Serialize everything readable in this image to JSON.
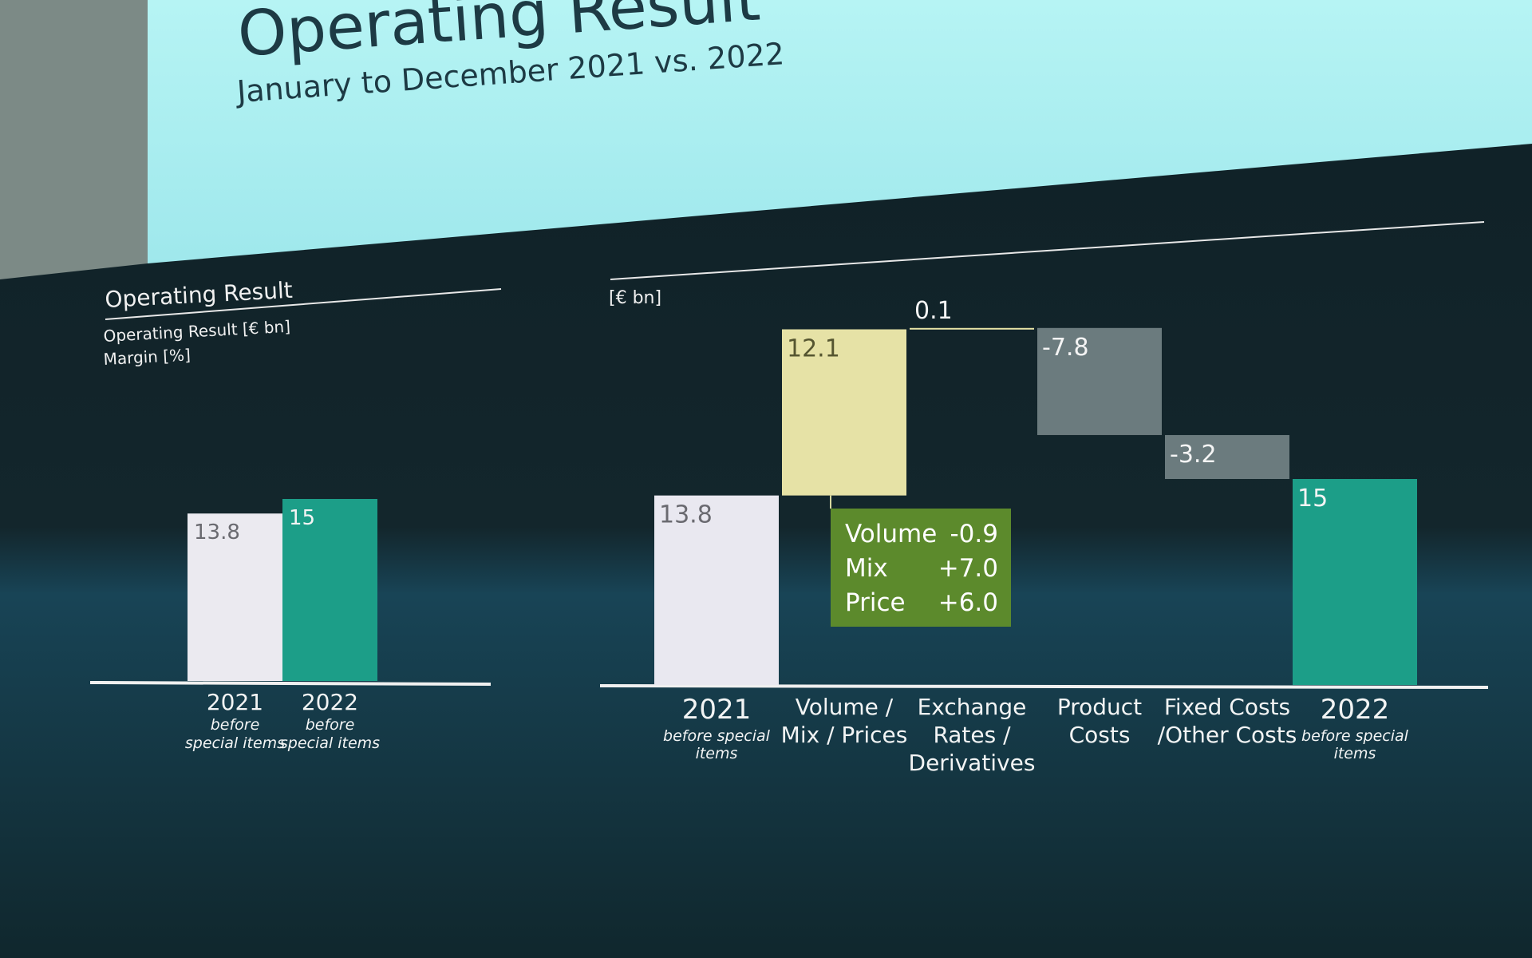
{
  "header": {
    "title": "Operating Result",
    "subtitle": "January to December 2021 vs. 2022"
  },
  "chart_data": [
    {
      "type": "bar",
      "title": "Operating Result",
      "subtitle": "Operating Result [€ bn]",
      "subtitle2": "Margin [%]",
      "categories": [
        "2021",
        "2022"
      ],
      "category_notes": [
        "before special items",
        "before special items"
      ],
      "values": [
        13.8,
        15.0
      ],
      "colors": [
        "#ebeaf0",
        "#1c9e88"
      ]
    },
    {
      "type": "waterfall",
      "unit": "[€ bn]",
      "categories": [
        "2021",
        "Volume / Mix / Prices",
        "Exchange Rates / Derivatives",
        "Product Costs",
        "Fixed Costs /Other Costs",
        "2022"
      ],
      "category_notes": [
        "before special items",
        null,
        null,
        null,
        null,
        "before special items"
      ],
      "values": [
        13.8,
        12.1,
        0.1,
        -7.8,
        -3.2,
        15.0
      ],
      "colors": [
        "#e9e8f0",
        "#e6e2a6",
        "#e6e2a6",
        "#6b7b7e",
        "#6b7b7e",
        "#1c9e88"
      ],
      "breakdown": {
        "names": [
          "Volume",
          "Mix",
          "Price"
        ],
        "values": [
          -0.9,
          7.0,
          6.0
        ],
        "value_labels": [
          "-0.9",
          "+7.0",
          "+6.0"
        ],
        "color": "#5c8a2c"
      }
    }
  ]
}
